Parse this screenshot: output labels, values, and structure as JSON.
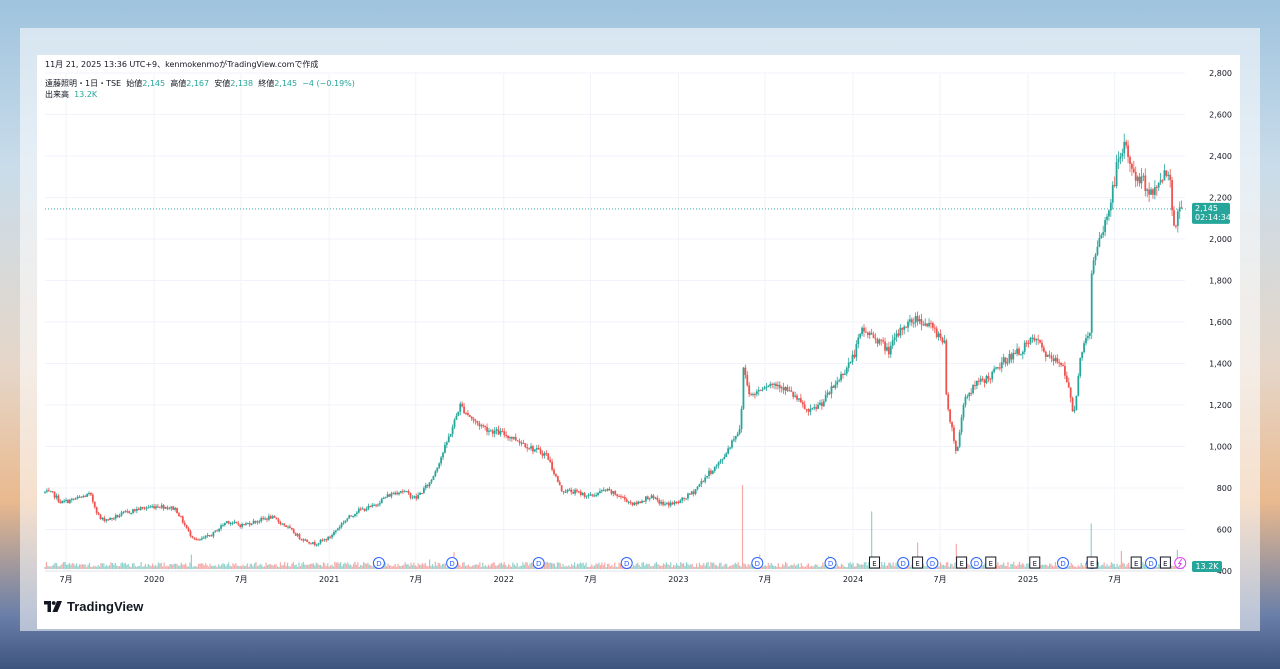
{
  "header": {
    "snapshot": "11月 21, 2025 13:36 UTC+9、kenmokenmoがTradingView.comで作成",
    "symbol": "遠藤照明・1日・TSE",
    "open_label": "始値",
    "open": "2,145",
    "high_label": "高値",
    "high": "2,167",
    "low_label": "安値",
    "low": "2,138",
    "close_label": "終値",
    "close": "2,145",
    "change": "−4 (−0.19%)",
    "volume_label": "出来高",
    "volume": "13.2K"
  },
  "price_tag": {
    "price": "2,145",
    "countdown": "02:14:34"
  },
  "volume_tag": "13.2K",
  "brand": "TradingView",
  "colors": {
    "up": "#26a69a",
    "down": "#ef5350",
    "grid": "#f0f3fa",
    "text": "#131722",
    "event_blue": "#2962ff"
  },
  "events": {
    "dividend": {
      "icon": "dividend-icon",
      "letter": "D",
      "dates": [
        "2021-04",
        "2021-09",
        "2022-03",
        "2022-09",
        "2023-06",
        "2023-11",
        "2024-04",
        "2024-06",
        "2024-09",
        "2025-03",
        "2025-05",
        "2025-09"
      ]
    },
    "earnings": {
      "icon": "earnings-icon",
      "letter": "E",
      "dates": [
        "2024-02",
        "2024-05",
        "2024-08",
        "2024-10",
        "2025-01",
        "2025-05",
        "2025-08",
        "2025-10"
      ]
    },
    "split": {
      "icon": "split-icon",
      "dates": [
        "2025-11"
      ]
    }
  },
  "chart_data": {
    "type": "candlestick",
    "y_axis": {
      "min": 400,
      "max": 2800,
      "ticks": [
        "2,800",
        "2,600",
        "2,400",
        "2,200",
        "2,000",
        "1,800",
        "1,600",
        "1,400",
        "1,200",
        "1,000",
        "800",
        "600",
        "400"
      ]
    },
    "x_axis": {
      "start": "2019-05-18",
      "end": "2025-11-25",
      "ticks": [
        {
          "date": "2019-07-01",
          "label": "7月"
        },
        {
          "date": "2020-01-01",
          "label": "2020"
        },
        {
          "date": "2020-07-01",
          "label": "7月"
        },
        {
          "date": "2021-01-01",
          "label": "2021"
        },
        {
          "date": "2021-07-01",
          "label": "7月"
        },
        {
          "date": "2022-01-01",
          "label": "2022"
        },
        {
          "date": "2022-07-01",
          "label": "7月"
        },
        {
          "date": "2023-01-01",
          "label": "2023"
        },
        {
          "date": "2023-07-01",
          "label": "7月"
        },
        {
          "date": "2024-01-01",
          "label": "2024"
        },
        {
          "date": "2024-07-01",
          "label": "7月"
        },
        {
          "date": "2025-01-01",
          "label": "2025"
        },
        {
          "date": "2025-07-01",
          "label": "7月"
        }
      ]
    },
    "price_path": [
      [
        "2019-05-18",
        780
      ],
      [
        "2019-06-05",
        770
      ],
      [
        "2019-06-20",
        730
      ],
      [
        "2019-07-10",
        740
      ],
      [
        "2019-08-01",
        755
      ],
      [
        "2019-08-20",
        770
      ],
      [
        "2019-09-10",
        650
      ],
      [
        "2019-10-01",
        650
      ],
      [
        "2019-11-01",
        680
      ],
      [
        "2019-12-01",
        700
      ],
      [
        "2020-01-10",
        715
      ],
      [
        "2020-02-15",
        700
      ],
      [
        "2020-03-15",
        580
      ],
      [
        "2020-04-01",
        545
      ],
      [
        "2020-05-01",
        575
      ],
      [
        "2020-06-01",
        640
      ],
      [
        "2020-07-01",
        620
      ],
      [
        "2020-08-01",
        640
      ],
      [
        "2020-09-01",
        660
      ],
      [
        "2020-10-01",
        620
      ],
      [
        "2020-11-01",
        560
      ],
      [
        "2020-12-01",
        530
      ],
      [
        "2021-01-01",
        560
      ],
      [
        "2021-02-01",
        640
      ],
      [
        "2021-03-01",
        690
      ],
      [
        "2021-04-01",
        710
      ],
      [
        "2021-05-01",
        760
      ],
      [
        "2021-06-01",
        790
      ],
      [
        "2021-07-01",
        750
      ],
      [
        "2021-08-01",
        830
      ],
      [
        "2021-09-01",
        1000
      ],
      [
        "2021-09-20",
        1120
      ],
      [
        "2021-10-01",
        1200
      ],
      [
        "2021-11-01",
        1120
      ],
      [
        "2021-12-01",
        1080
      ],
      [
        "2022-01-01",
        1060
      ],
      [
        "2022-02-01",
        1030
      ],
      [
        "2022-03-01",
        990
      ],
      [
        "2022-04-01",
        960
      ],
      [
        "2022-05-01",
        790
      ],
      [
        "2022-06-01",
        780
      ],
      [
        "2022-07-01",
        760
      ],
      [
        "2022-08-01",
        790
      ],
      [
        "2022-09-01",
        760
      ],
      [
        "2022-10-01",
        720
      ],
      [
        "2022-11-01",
        760
      ],
      [
        "2022-12-01",
        720
      ],
      [
        "2023-01-01",
        730
      ],
      [
        "2023-02-01",
        780
      ],
      [
        "2023-03-01",
        860
      ],
      [
        "2023-04-01",
        930
      ],
      [
        "2023-05-01",
        1060
      ],
      [
        "2023-05-12",
        1080
      ],
      [
        "2023-05-15",
        1400
      ],
      [
        "2023-06-01",
        1240
      ],
      [
        "2023-07-01",
        1300
      ],
      [
        "2023-08-01",
        1300
      ],
      [
        "2023-09-01",
        1240
      ],
      [
        "2023-10-01",
        1160
      ],
      [
        "2023-11-01",
        1220
      ],
      [
        "2023-12-01",
        1320
      ],
      [
        "2024-01-01",
        1430
      ],
      [
        "2024-01-20",
        1560
      ],
      [
        "2024-02-20",
        1520
      ],
      [
        "2024-03-15",
        1460
      ],
      [
        "2024-04-15",
        1580
      ],
      [
        "2024-05-15",
        1620
      ],
      [
        "2024-06-15",
        1570
      ],
      [
        "2024-07-10",
        1510
      ],
      [
        "2024-07-12",
        1260
      ],
      [
        "2024-08-05",
        960
      ],
      [
        "2024-08-20",
        1230
      ],
      [
        "2024-09-15",
        1300
      ],
      [
        "2024-10-15",
        1340
      ],
      [
        "2024-11-15",
        1420
      ],
      [
        "2024-12-15",
        1460
      ],
      [
        "2025-01-15",
        1520
      ],
      [
        "2025-02-15",
        1420
      ],
      [
        "2025-03-15",
        1400
      ],
      [
        "2025-04-07",
        1150
      ],
      [
        "2025-04-20",
        1440
      ],
      [
        "2025-05-10",
        1560
      ],
      [
        "2025-05-14",
        1850
      ],
      [
        "2025-06-01",
        2000
      ],
      [
        "2025-06-20",
        2150
      ],
      [
        "2025-07-10",
        2400
      ],
      [
        "2025-07-25",
        2450
      ],
      [
        "2025-08-10",
        2300
      ],
      [
        "2025-09-01",
        2270
      ],
      [
        "2025-09-20",
        2210
      ],
      [
        "2025-10-10",
        2320
      ],
      [
        "2025-10-25",
        2300
      ],
      [
        "2025-11-01",
        2060
      ],
      [
        "2025-11-10",
        2120
      ],
      [
        "2025-11-21",
        2145
      ]
    ],
    "volume_spikes": [
      [
        "2020-03-20",
        120
      ],
      [
        "2021-07-30",
        80
      ],
      [
        "2021-09-20",
        140
      ],
      [
        "2023-05-15",
        700
      ],
      [
        "2023-06-20",
        120
      ],
      [
        "2023-11-10",
        110
      ],
      [
        "2024-02-10",
        480
      ],
      [
        "2024-05-15",
        220
      ],
      [
        "2024-08-05",
        210
      ],
      [
        "2025-05-14",
        380
      ],
      [
        "2025-07-15",
        150
      ],
      [
        "2025-11-10",
        160
      ]
    ],
    "last_price": 2145
  }
}
